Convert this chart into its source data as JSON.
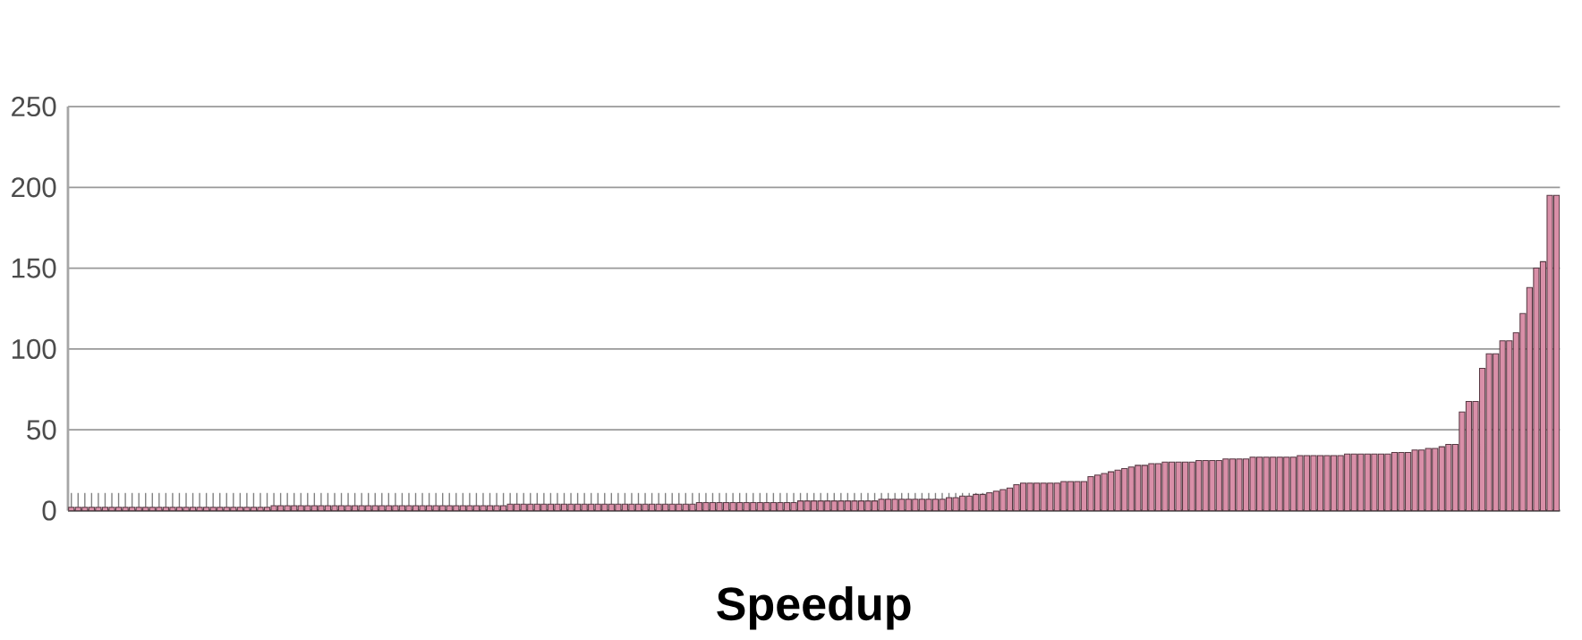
{
  "chart_data": {
    "type": "bar",
    "xlabel": "Speedup",
    "color": "#d98fa8",
    "grid": "y",
    "ylim": [
      0,
      250
    ],
    "yticks": [
      0,
      50,
      100,
      150,
      200,
      250
    ],
    "categories": [
      null,
      null,
      null,
      null,
      null,
      null,
      null,
      null,
      null,
      null,
      null,
      null,
      null,
      null,
      null,
      null,
      null,
      null,
      null,
      null,
      null,
      null,
      null,
      null,
      null,
      null,
      null,
      null,
      null,
      null,
      null,
      null,
      null,
      null,
      null,
      null,
      null,
      null,
      null,
      null,
      null,
      null,
      null,
      null,
      null,
      null,
      null,
      null,
      null,
      null,
      null,
      null,
      null,
      null,
      null,
      null,
      null,
      null,
      null,
      null,
      null,
      null,
      null,
      null,
      null,
      null,
      null,
      null,
      null,
      null,
      null,
      null,
      null,
      null,
      null,
      null,
      null,
      null,
      null,
      null,
      null,
      null,
      null,
      null,
      null,
      null,
      null,
      null,
      null,
      null,
      null,
      null,
      null,
      null,
      null,
      null,
      null,
      null,
      null,
      null,
      null,
      null,
      null,
      null,
      null,
      null,
      null,
      null,
      null,
      null,
      null,
      null,
      null,
      null,
      null,
      null,
      null,
      null,
      null,
      null,
      null,
      null,
      null,
      null,
      null,
      null,
      null,
      null,
      null,
      null,
      null,
      null,
      null,
      null,
      null,
      null,
      null,
      null,
      null,
      null,
      null,
      null,
      null,
      null,
      null,
      null,
      null,
      null,
      null,
      null,
      null,
      null,
      null,
      null,
      null,
      null,
      null,
      null,
      null,
      null,
      null,
      null,
      null,
      null,
      null,
      null,
      null,
      null,
      null,
      null,
      null,
      null,
      null,
      null,
      null,
      null,
      null,
      null,
      null,
      null,
      null,
      null,
      null,
      null,
      null,
      null,
      null,
      null,
      null,
      null,
      null,
      null,
      null,
      null,
      null,
      null,
      null,
      null,
      null,
      null,
      null,
      null,
      null,
      null,
      null,
      null,
      null,
      null,
      null,
      null,
      null,
      null,
      null,
      null,
      null,
      null,
      null,
      null,
      null,
      null,
      null
    ],
    "values": [
      2,
      2,
      2,
      2,
      2,
      2,
      2,
      2,
      2,
      2,
      2,
      2,
      2,
      2,
      2,
      2,
      2,
      2,
      2,
      2,
      2,
      2,
      2,
      2,
      2,
      2,
      2,
      2,
      2,
      2,
      3,
      3,
      3,
      3,
      3,
      3,
      3,
      3,
      3,
      3,
      3,
      3,
      3,
      3,
      3,
      3,
      3,
      3,
      3,
      3,
      3,
      3,
      3,
      3,
      3,
      3,
      3,
      3,
      3,
      3,
      3,
      3,
      3,
      3,
      3,
      4,
      4,
      4,
      4,
      4,
      4,
      4,
      4,
      4,
      4,
      4,
      4,
      4,
      4,
      4,
      4,
      4,
      4,
      4,
      4,
      4,
      4,
      4,
      4,
      4,
      4,
      4,
      4,
      5,
      5,
      5,
      5,
      5,
      5,
      5,
      5,
      5,
      5,
      5,
      5,
      5,
      5,
      5,
      6,
      6,
      6,
      6,
      6,
      6,
      6,
      6,
      6,
      6,
      6,
      6,
      7,
      7,
      7,
      7,
      7,
      7,
      7,
      7,
      7,
      7,
      8,
      8,
      9,
      9,
      10,
      10,
      11,
      12,
      13,
      14,
      16,
      17,
      17,
      17,
      17,
      17,
      17,
      18,
      18,
      18,
      18,
      21,
      22,
      23,
      24,
      25,
      26,
      27,
      28,
      28,
      29,
      29,
      30,
      30,
      30,
      30,
      30,
      31,
      31,
      31,
      31,
      32,
      32,
      32,
      32,
      33,
      33,
      33,
      33,
      33,
      33,
      33,
      34,
      34,
      34,
      34,
      34,
      34,
      34,
      35,
      35,
      35,
      35,
      35,
      35,
      35,
      36,
      36,
      36,
      37.5,
      37.5,
      38.5,
      38.5,
      39.5,
      41,
      41,
      61,
      67.5,
      67.5,
      88,
      97,
      97,
      105,
      105,
      110,
      122,
      138,
      150,
      154,
      195,
      195
    ]
  }
}
